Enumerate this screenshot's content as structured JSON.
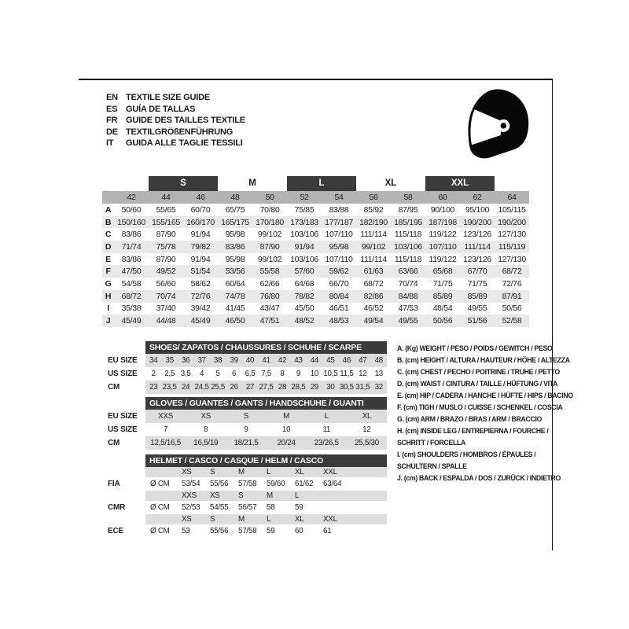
{
  "header": {
    "languages": [
      {
        "code": "EN",
        "text": "TEXTILE SIZE GUIDE"
      },
      {
        "code": "ES",
        "text": "GUÍA DE TALLAS"
      },
      {
        "code": "FR",
        "text": "GUIDE DES TAILLES TEXTILE"
      },
      {
        "code": "DE",
        "text": "TEXTILGRÖßENFÜHRUNG"
      },
      {
        "code": "IT",
        "text": "GUIDA ALLE TAGLIE TESSILI"
      }
    ]
  },
  "icons": {
    "logo": "racing-helmet-icon"
  },
  "main_table": {
    "size_groups": [
      {
        "label": "S",
        "boxed": true
      },
      {
        "label": "M",
        "boxed": false
      },
      {
        "label": "L",
        "boxed": true
      },
      {
        "label": "XL",
        "boxed": false
      },
      {
        "label": "XXL",
        "boxed": true
      }
    ],
    "columns": [
      "42",
      "44",
      "46",
      "48",
      "50",
      "52",
      "54",
      "56",
      "58",
      "60",
      "62",
      "64"
    ],
    "rows": [
      {
        "label": "A",
        "values": [
          "50/60",
          "55/65",
          "60/70",
          "65/75",
          "70/80",
          "75/85",
          "83/88",
          "85/92",
          "87/95",
          "90/100",
          "95/100",
          "105/115"
        ]
      },
      {
        "label": "B",
        "values": [
          "150/160",
          "155/165",
          "160/170",
          "165/175",
          "170/180",
          "173/183",
          "177/187",
          "182/190",
          "185/195",
          "187/198",
          "190/200",
          "190/200"
        ]
      },
      {
        "label": "C",
        "values": [
          "83/86",
          "87/90",
          "91/94",
          "95/98",
          "99/102",
          "103/106",
          "107/110",
          "111/114",
          "115/118",
          "119/122",
          "123/126",
          "127/130"
        ]
      },
      {
        "label": "D",
        "values": [
          "71/74",
          "75/78",
          "79/82",
          "83/86",
          "87/90",
          "91/94",
          "95/98",
          "99/102",
          "103/106",
          "107/110",
          "111/114",
          "115/119"
        ]
      },
      {
        "label": "E",
        "values": [
          "83/86",
          "87/90",
          "91/94",
          "95/98",
          "99/102",
          "103/106",
          "107/110",
          "111/114",
          "115/118",
          "119/122",
          "123/126",
          "127/130"
        ]
      },
      {
        "label": "F",
        "values": [
          "47/50",
          "49/52",
          "51/54",
          "53/56",
          "55/58",
          "57/60",
          "59/62",
          "61/63",
          "63/66",
          "65/68",
          "67/70",
          "68/72"
        ]
      },
      {
        "label": "G",
        "values": [
          "54/58",
          "56/60",
          "58/62",
          "60/64",
          "62/66",
          "64/68",
          "66/70",
          "68/72",
          "70/74",
          "71/75",
          "71/75",
          "72/76"
        ]
      },
      {
        "label": "H",
        "values": [
          "68/72",
          "70/74",
          "72/76",
          "74/78",
          "76/80",
          "78/82",
          "80/84",
          "82/86",
          "84/88",
          "85/89",
          "85/89",
          "87/91"
        ]
      },
      {
        "label": "I",
        "values": [
          "35/38",
          "37/40",
          "39/42",
          "41/45",
          "43/47",
          "45/50",
          "46/51",
          "46/52",
          "47/53",
          "48/54",
          "49/55",
          "50/56"
        ]
      },
      {
        "label": "J",
        "values": [
          "45/49",
          "44/48",
          "45/49",
          "46/50",
          "47/51",
          "48/52",
          "48/53",
          "49/54",
          "49/55",
          "50/56",
          "51/56",
          "52/58"
        ]
      }
    ]
  },
  "shoes_table": {
    "title": "SHOES/ ZAPATOS / CHAUSSURES / SCHUHE / SCARPE",
    "rows": [
      {
        "label": "EU SIZE",
        "values": [
          "34",
          "35",
          "36",
          "37",
          "38",
          "39",
          "40",
          "41",
          "42",
          "43",
          "44",
          "45",
          "46",
          "47",
          "48"
        ]
      },
      {
        "label": "US SIZE",
        "values": [
          "2",
          "2,5",
          "3,5",
          "4",
          "5",
          "6",
          "6,5",
          "7,5",
          "8",
          "9",
          "10",
          "10,5",
          "11,5",
          "12",
          "13"
        ]
      },
      {
        "label": "CM",
        "values": [
          "23",
          "23,5",
          "24",
          "24,5",
          "25,5",
          "26",
          "27",
          "27,5",
          "28",
          "28,5",
          "29",
          "30",
          "30,5",
          "31,5",
          "32"
        ]
      }
    ]
  },
  "gloves_table": {
    "title": "GLOVES / GUANTES / GANTS / HANDSCHUHE / GUANTI",
    "rows": [
      {
        "label": "EU SIZE",
        "values": [
          "XXS",
          "XS",
          "S",
          "M",
          "L",
          "XL"
        ]
      },
      {
        "label": "US SIZE",
        "values": [
          "7",
          "8",
          "9",
          "10",
          "11",
          "12"
        ]
      },
      {
        "label": "CM",
        "values": [
          "12,5/16,5",
          "16,5/19",
          "18/21,5",
          "20/24",
          "23/26,5",
          "25,5/30"
        ]
      }
    ]
  },
  "helmet_table": {
    "title": "HELMET / CASCO / CASQUE / HELM / CASCO",
    "sections": [
      {
        "label": "FIA",
        "unit": "Ø CM",
        "sizes": [
          "XS",
          "S",
          "M",
          "L",
          "XL",
          "XXL"
        ],
        "values": [
          "53/54",
          "55/56",
          "57/58",
          "59/60",
          "61/62",
          "63/64"
        ]
      },
      {
        "label": "CMR",
        "unit": "Ø CM",
        "sizes": [
          "XXS",
          "XS",
          "S",
          "M",
          "L"
        ],
        "values": [
          "52/53",
          "54/55",
          "56/57",
          "58",
          "59"
        ]
      },
      {
        "label": "ECE",
        "unit": "Ø CM",
        "sizes": [
          "XS",
          "S",
          "M",
          "L",
          "XL",
          "XXL"
        ],
        "values": [
          "53",
          "55/56",
          "57/58",
          "59",
          "60",
          "61"
        ]
      }
    ]
  },
  "legend": {
    "items": [
      [
        "A. (Kg) WEIGHT / PESO / POIDS / GEWITCH / PESO"
      ],
      [
        "B. (cm) HEIGHT / ALTURA / HAUTEUR / HÖHE / ALTEZZA"
      ],
      [
        "C. (cm) CHEST / PECHO / POITRINE / TRUHE / PETTO"
      ],
      [
        "D. (cm) WAIST / CINTURA / TAILLE / HÜFTUNG / VITA"
      ],
      [
        "E. (cm) HIP / CADERA / HANCHE / HÜFTE / HIPS /  BACINO"
      ],
      [
        "F. (cm) TIGH / MUSLO / CUISSE / SCHENKEL / COSCIA"
      ],
      [
        "G. (cm) ARM  / BRAZO / BRAS / ARM / BRACCIO"
      ],
      [
        "H. (cm) INSIDE LEG / ENTREPIERNA / FOURCHE /",
        "SCHRITT / FORCELLA"
      ],
      [
        "I.  (cm) SHOULDERS / HOMBROS / ÉPAULES /",
        "SCHULTERN / SPALLE"
      ],
      [
        "J. (cm) BACK / ESPALDA / DOS / ZURÜCK / INDIETRO"
      ]
    ]
  },
  "colors": {
    "dark_header": "#3b3b3b",
    "size_band_gray": "#b3b3b3",
    "row_stripe_gray": "#e9e9e9",
    "subtable_gray": "#dddddd",
    "text": "#1c1c1c",
    "background": "#ffffff"
  }
}
